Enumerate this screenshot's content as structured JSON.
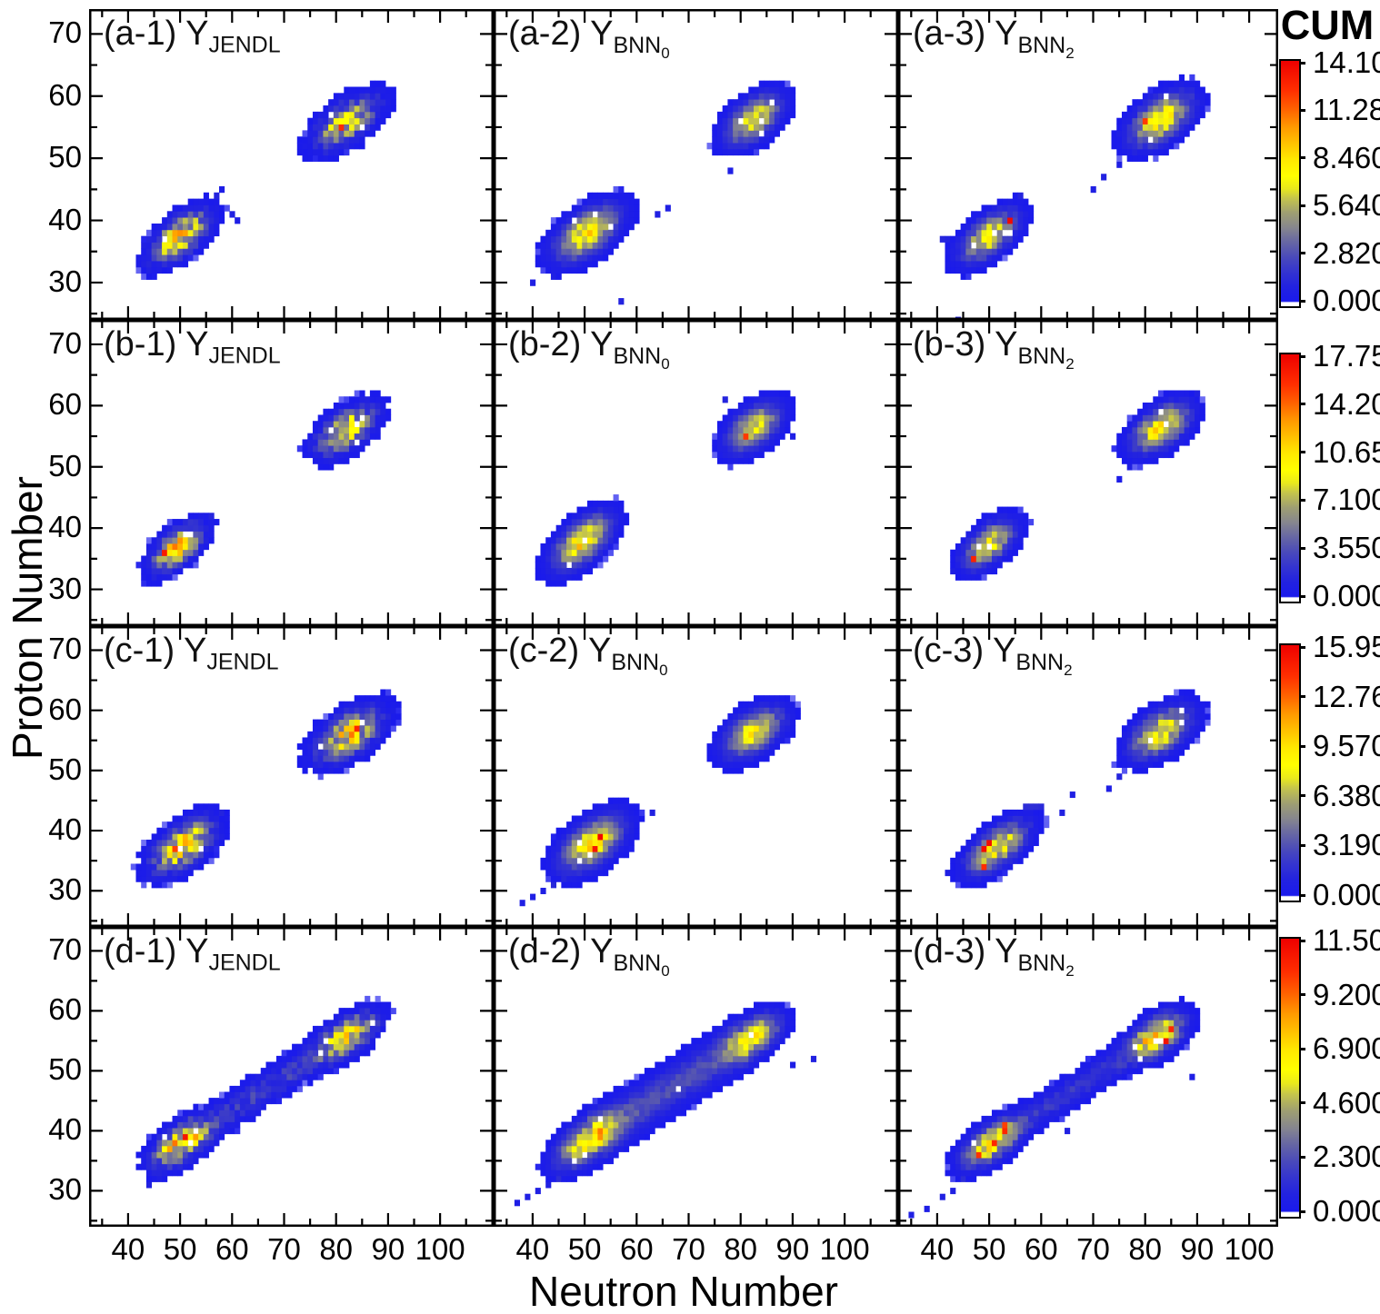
{
  "chart_data": {
    "type": "heatmap",
    "title": "",
    "xlabel": "Neutron Number",
    "ylabel": "Proton Number",
    "colorbar_title": "CUM",
    "x_ticks": [
      40,
      50,
      60,
      70,
      80,
      90,
      100
    ],
    "y_ticks": [
      30,
      40,
      50,
      60,
      70
    ],
    "x_minor_step": 5,
    "y_minor_step": 5,
    "x_range": [
      32.5,
      110.3
    ],
    "y_range": [
      24,
      74
    ],
    "grid": false,
    "legend_position": "right-colorbar-per-row",
    "colorscale": [
      [
        0.0,
        "#ffffff"
      ],
      [
        0.015,
        "#ffffff"
      ],
      [
        0.02,
        "#1a1aec"
      ],
      [
        0.08,
        "#2222e0"
      ],
      [
        0.14,
        "#3434d0"
      ],
      [
        0.2,
        "#4a4aba"
      ],
      [
        0.26,
        "#6666a4"
      ],
      [
        0.32,
        "#86868e"
      ],
      [
        0.38,
        "#9e9e72"
      ],
      [
        0.44,
        "#c4c44c"
      ],
      [
        0.48,
        "#e9e91c"
      ],
      [
        0.53,
        "#ffff00"
      ],
      [
        0.6,
        "#ffe800"
      ],
      [
        0.66,
        "#ffc400"
      ],
      [
        0.73,
        "#ff9a00"
      ],
      [
        0.8,
        "#ff6400"
      ],
      [
        0.88,
        "#ff2e00"
      ],
      [
        1.0,
        "#ee0000"
      ]
    ],
    "rows": [
      {
        "id": "a",
        "colorbar_max": 14.1,
        "colorbar_ticks": [
          "14.10",
          "11.28",
          "8.460",
          "5.640",
          "2.820",
          "0.000"
        ],
        "panels": [
          {
            "id": "a-1",
            "label_prefix": "(a-1)",
            "label_base": "Y",
            "label_sub": "JENDL",
            "label_subsub": "",
            "seed": 11,
            "noise": [
              0.55,
              0.95
            ],
            "hole_p": 0.055,
            "speck_p": 0.035,
            "blobs": [
              {
                "cx": 50,
                "cy": 37.5,
                "slope": 0.6,
                "sa": 3.8,
                "sb": 1.7,
                "amp": 0.58
              },
              {
                "cx": 82,
                "cy": 55.8,
                "slope": 0.55,
                "sa": 4.0,
                "sb": 1.8,
                "amp": 0.5
              }
            ],
            "outliers": [
              [
                61,
                40,
                0.06
              ],
              [
                60,
                41,
                0.07
              ],
              [
                44,
                32,
                0.06
              ],
              [
                57,
                44,
                0.08
              ],
              [
                58,
                45,
                0.06
              ]
            ]
          },
          {
            "id": "a-2",
            "label_prefix": "(a-2)",
            "label_base": "Y",
            "label_sub": "BNN",
            "label_subsub": "0",
            "seed": 12,
            "noise": [
              0.8,
              0.45
            ],
            "hole_p": 0.03,
            "speck_p": 0.02,
            "blobs": [
              {
                "cx": 50.5,
                "cy": 38,
                "slope": 0.55,
                "sa": 4.2,
                "sb": 2.0,
                "amp": 0.56
              },
              {
                "cx": 82.5,
                "cy": 56.3,
                "slope": 0.6,
                "sa": 3.6,
                "sb": 1.9,
                "amp": 0.52
              }
            ],
            "outliers": [
              [
                57,
                27,
                0.07
              ],
              [
                44,
                31,
                0.06
              ],
              [
                40,
                30,
                0.05
              ],
              [
                66,
                42,
                0.08
              ],
              [
                64,
                41,
                0.07
              ],
              [
                78,
                48,
                0.06
              ]
            ]
          },
          {
            "id": "a-3",
            "label_prefix": "(a-3)",
            "label_base": "Y",
            "label_sub": "BNN",
            "label_subsub": "2",
            "seed": 13,
            "noise": [
              0.72,
              0.6
            ],
            "hole_p": 0.04,
            "speck_p": 0.03,
            "blobs": [
              {
                "cx": 50,
                "cy": 37.5,
                "slope": 0.6,
                "sa": 3.8,
                "sb": 1.8,
                "amp": 0.5
              },
              {
                "cx": 83,
                "cy": 56.3,
                "slope": 0.55,
                "sa": 4.0,
                "sb": 2.0,
                "amp": 0.55
              }
            ],
            "outliers": [
              [
                89,
                60,
                0.07
              ],
              [
                72,
                47,
                0.07
              ],
              [
                70,
                45,
                0.06
              ],
              [
                44,
                24,
                0.06
              ],
              [
                41,
                37,
                0.08
              ],
              [
                42,
                37,
                0.07
              ],
              [
                56,
                44,
                0.07
              ],
              [
                75,
                49,
                0.06
              ]
            ]
          }
        ]
      },
      {
        "id": "b",
        "colorbar_max": 17.75,
        "colorbar_ticks": [
          "17.75",
          "14.20",
          "10.65",
          "7.100",
          "3.550",
          "0.000"
        ],
        "panels": [
          {
            "id": "b-1",
            "label_prefix": "(b-1)",
            "label_base": "Y",
            "label_sub": "JENDL",
            "label_subsub": "",
            "seed": 21,
            "noise": [
              0.55,
              0.95
            ],
            "hole_p": 0.055,
            "speck_p": 0.035,
            "blobs": [
              {
                "cx": 49.5,
                "cy": 36.8,
                "slope": 0.65,
                "sa": 3.3,
                "sb": 1.6,
                "amp": 0.6
              },
              {
                "cx": 82,
                "cy": 56,
                "slope": 0.55,
                "sa": 3.7,
                "sb": 1.8,
                "amp": 0.52
              }
            ],
            "outliers": [
              [
                56,
                42,
                0.07
              ],
              [
                45,
                33,
                0.06
              ]
            ]
          },
          {
            "id": "b-2",
            "label_prefix": "(b-2)",
            "label_base": "Y",
            "label_sub": "BNN",
            "label_subsub": "0",
            "seed": 22,
            "noise": [
              0.8,
              0.45
            ],
            "hole_p": 0.025,
            "speck_p": 0.012,
            "blobs": [
              {
                "cx": 49.5,
                "cy": 37.8,
                "slope": 0.7,
                "sa": 3.9,
                "sb": 1.9,
                "amp": 0.58
              },
              {
                "cx": 82.5,
                "cy": 56.4,
                "slope": 0.6,
                "sa": 3.5,
                "sb": 1.9,
                "amp": 0.5
              }
            ],
            "outliers": [
              [
                90,
                55,
                0.06
              ],
              [
                77,
                61,
                0.07
              ],
              [
                44,
                34,
                0.06
              ]
            ]
          },
          {
            "id": "b-3",
            "label_prefix": "(b-3)",
            "label_base": "Y",
            "label_sub": "BNN",
            "label_subsub": "2",
            "seed": 23,
            "noise": [
              0.72,
              0.6
            ],
            "hole_p": 0.04,
            "speck_p": 0.025,
            "blobs": [
              {
                "cx": 50,
                "cy": 37.4,
                "slope": 0.65,
                "sa": 3.4,
                "sb": 1.7,
                "amp": 0.52
              },
              {
                "cx": 83,
                "cy": 56.4,
                "slope": 0.55,
                "sa": 3.7,
                "sb": 1.9,
                "amp": 0.54
              }
            ],
            "outliers": [
              [
                90,
                62,
                0.06
              ],
              [
                77,
                50,
                0.07
              ],
              [
                75,
                48,
                0.05
              ],
              [
                43,
                33,
                0.06
              ]
            ]
          }
        ]
      },
      {
        "id": "c",
        "colorbar_max": 15.95,
        "colorbar_ticks": [
          "15.95",
          "12.76",
          "9.570",
          "6.380",
          "3.190",
          "0.000"
        ],
        "panels": [
          {
            "id": "c-1",
            "label_prefix": "(c-1)",
            "label_base": "Y",
            "label_sub": "JENDL",
            "label_subsub": "",
            "seed": 31,
            "noise": [
              0.55,
              0.95
            ],
            "hole_p": 0.055,
            "speck_p": 0.035,
            "blobs": [
              {
                "cx": 50.5,
                "cy": 37.5,
                "slope": 0.6,
                "sa": 3.9,
                "sb": 1.9,
                "amp": 0.6
              },
              {
                "cx": 82.5,
                "cy": 56,
                "slope": 0.55,
                "sa": 4.1,
                "sb": 2.0,
                "amp": 0.54
              }
            ],
            "outliers": [
              [
                58,
                43,
                0.07
              ],
              [
                44,
                32,
                0.06
              ]
            ]
          },
          {
            "id": "c-2",
            "label_prefix": "(c-2)",
            "label_base": "Y",
            "label_sub": "BNN",
            "label_subsub": "0",
            "seed": 32,
            "noise": [
              0.8,
              0.45
            ],
            "hole_p": 0.025,
            "speck_p": 0.015,
            "blobs": [
              {
                "cx": 51.5,
                "cy": 38,
                "slope": 0.6,
                "sa": 4.1,
                "sb": 2.1,
                "amp": 0.58
              },
              {
                "cx": 82.5,
                "cy": 56.4,
                "slope": 0.55,
                "sa": 3.8,
                "sb": 2.0,
                "amp": 0.52
              }
            ],
            "outliers": [
              [
                46,
                32,
                0.1
              ],
              [
                44,
                31,
                0.08
              ],
              [
                42,
                30,
                0.07
              ],
              [
                40,
                29,
                0.06
              ],
              [
                38,
                28,
                0.05
              ],
              [
                88,
                61,
                0.06
              ],
              [
                63,
                43,
                0.07
              ]
            ]
          },
          {
            "id": "c-3",
            "label_prefix": "(c-3)",
            "label_base": "Y",
            "label_sub": "BNN",
            "label_subsub": "2",
            "seed": 33,
            "noise": [
              0.72,
              0.6
            ],
            "hole_p": 0.04,
            "speck_p": 0.025,
            "blobs": [
              {
                "cx": 51.5,
                "cy": 37.2,
                "slope": 0.62,
                "sa": 4.1,
                "sb": 1.8,
                "amp": 0.52
              },
              {
                "cx": 83,
                "cy": 56.4,
                "slope": 0.55,
                "sa": 3.9,
                "sb": 2.0,
                "amp": 0.54
              }
            ],
            "outliers": [
              [
                57,
                44,
                0.12
              ],
              [
                58,
                44,
                0.12
              ],
              [
                59,
                44,
                0.12
              ],
              [
                60,
                44,
                0.1
              ],
              [
                66,
                46,
                0.07
              ],
              [
                64,
                43,
                0.06
              ],
              [
                89,
                60,
                0.07
              ],
              [
                75,
                49,
                0.08
              ],
              [
                73,
                47,
                0.06
              ],
              [
                42,
                33,
                0.06
              ]
            ]
          }
        ]
      },
      {
        "id": "d",
        "colorbar_max": 11.5,
        "colorbar_ticks": [
          "11.50",
          "9.200",
          "6.900",
          "4.600",
          "2.300",
          "0.000"
        ],
        "panels": [
          {
            "id": "d-1",
            "label_prefix": "(d-1)",
            "label_base": "Y",
            "label_sub": "JENDL",
            "label_subsub": "",
            "seed": 41,
            "noise": [
              0.55,
              0.95
            ],
            "hole_p": 0.055,
            "speck_p": 0.035,
            "bridge": {
              "amp": 0.15,
              "width": 1.6
            },
            "blobs": [
              {
                "cx": 50,
                "cy": 37.8,
                "slope": 0.6,
                "sa": 3.5,
                "sb": 1.7,
                "amp": 0.6
              },
              {
                "cx": 82.5,
                "cy": 56,
                "slope": 0.55,
                "sa": 3.5,
                "sb": 1.7,
                "amp": 0.55
              }
            ],
            "outliers": [
              [
                44,
                31,
                0.08
              ],
              [
                46,
                32,
                0.06
              ],
              [
                89,
                59,
                0.06
              ]
            ]
          },
          {
            "id": "d-2",
            "label_prefix": "(d-2)",
            "label_base": "Y",
            "label_sub": "BNN",
            "label_subsub": "0",
            "seed": 42,
            "noise": [
              0.8,
              0.45
            ],
            "hole_p": 0.03,
            "speck_p": 0.018,
            "bridge": {
              "amp": 0.2,
              "width": 2.2
            },
            "blobs": [
              {
                "cx": 50.5,
                "cy": 38.3,
                "slope": 0.6,
                "sa": 4.0,
                "sb": 1.9,
                "amp": 0.58
              },
              {
                "cx": 82.5,
                "cy": 55.8,
                "slope": 0.55,
                "sa": 3.4,
                "sb": 1.8,
                "amp": 0.54
              }
            ],
            "outliers": [
              [
                45,
                32,
                0.1
              ],
              [
                43,
                31,
                0.08
              ],
              [
                41,
                30,
                0.07
              ],
              [
                39,
                29,
                0.06
              ],
              [
                37,
                28,
                0.05
              ],
              [
                94,
                52,
                0.07
              ],
              [
                90,
                51,
                0.06
              ]
            ]
          },
          {
            "id": "d-3",
            "label_prefix": "(d-3)",
            "label_base": "Y",
            "label_sub": "BNN",
            "label_subsub": "2",
            "seed": 43,
            "noise": [
              0.72,
              0.6
            ],
            "hole_p": 0.045,
            "speck_p": 0.03,
            "bridge": {
              "amp": 0.14,
              "width": 1.5
            },
            "blobs": [
              {
                "cx": 50,
                "cy": 37.8,
                "slope": 0.6,
                "sa": 3.6,
                "sb": 1.7,
                "amp": 0.55
              },
              {
                "cx": 82.5,
                "cy": 56,
                "slope": 0.55,
                "sa": 3.4,
                "sb": 1.8,
                "amp": 0.58
              }
            ],
            "outliers": [
              [
                45,
                32,
                0.09
              ],
              [
                43,
                30,
                0.07
              ],
              [
                41,
                29,
                0.07
              ],
              [
                38,
                27,
                0.06
              ],
              [
                35,
                26,
                0.05
              ],
              [
                89,
                49,
                0.06
              ],
              [
                87,
                60,
                0.07
              ],
              [
                65,
                40,
                0.06
              ]
            ]
          }
        ]
      }
    ]
  }
}
